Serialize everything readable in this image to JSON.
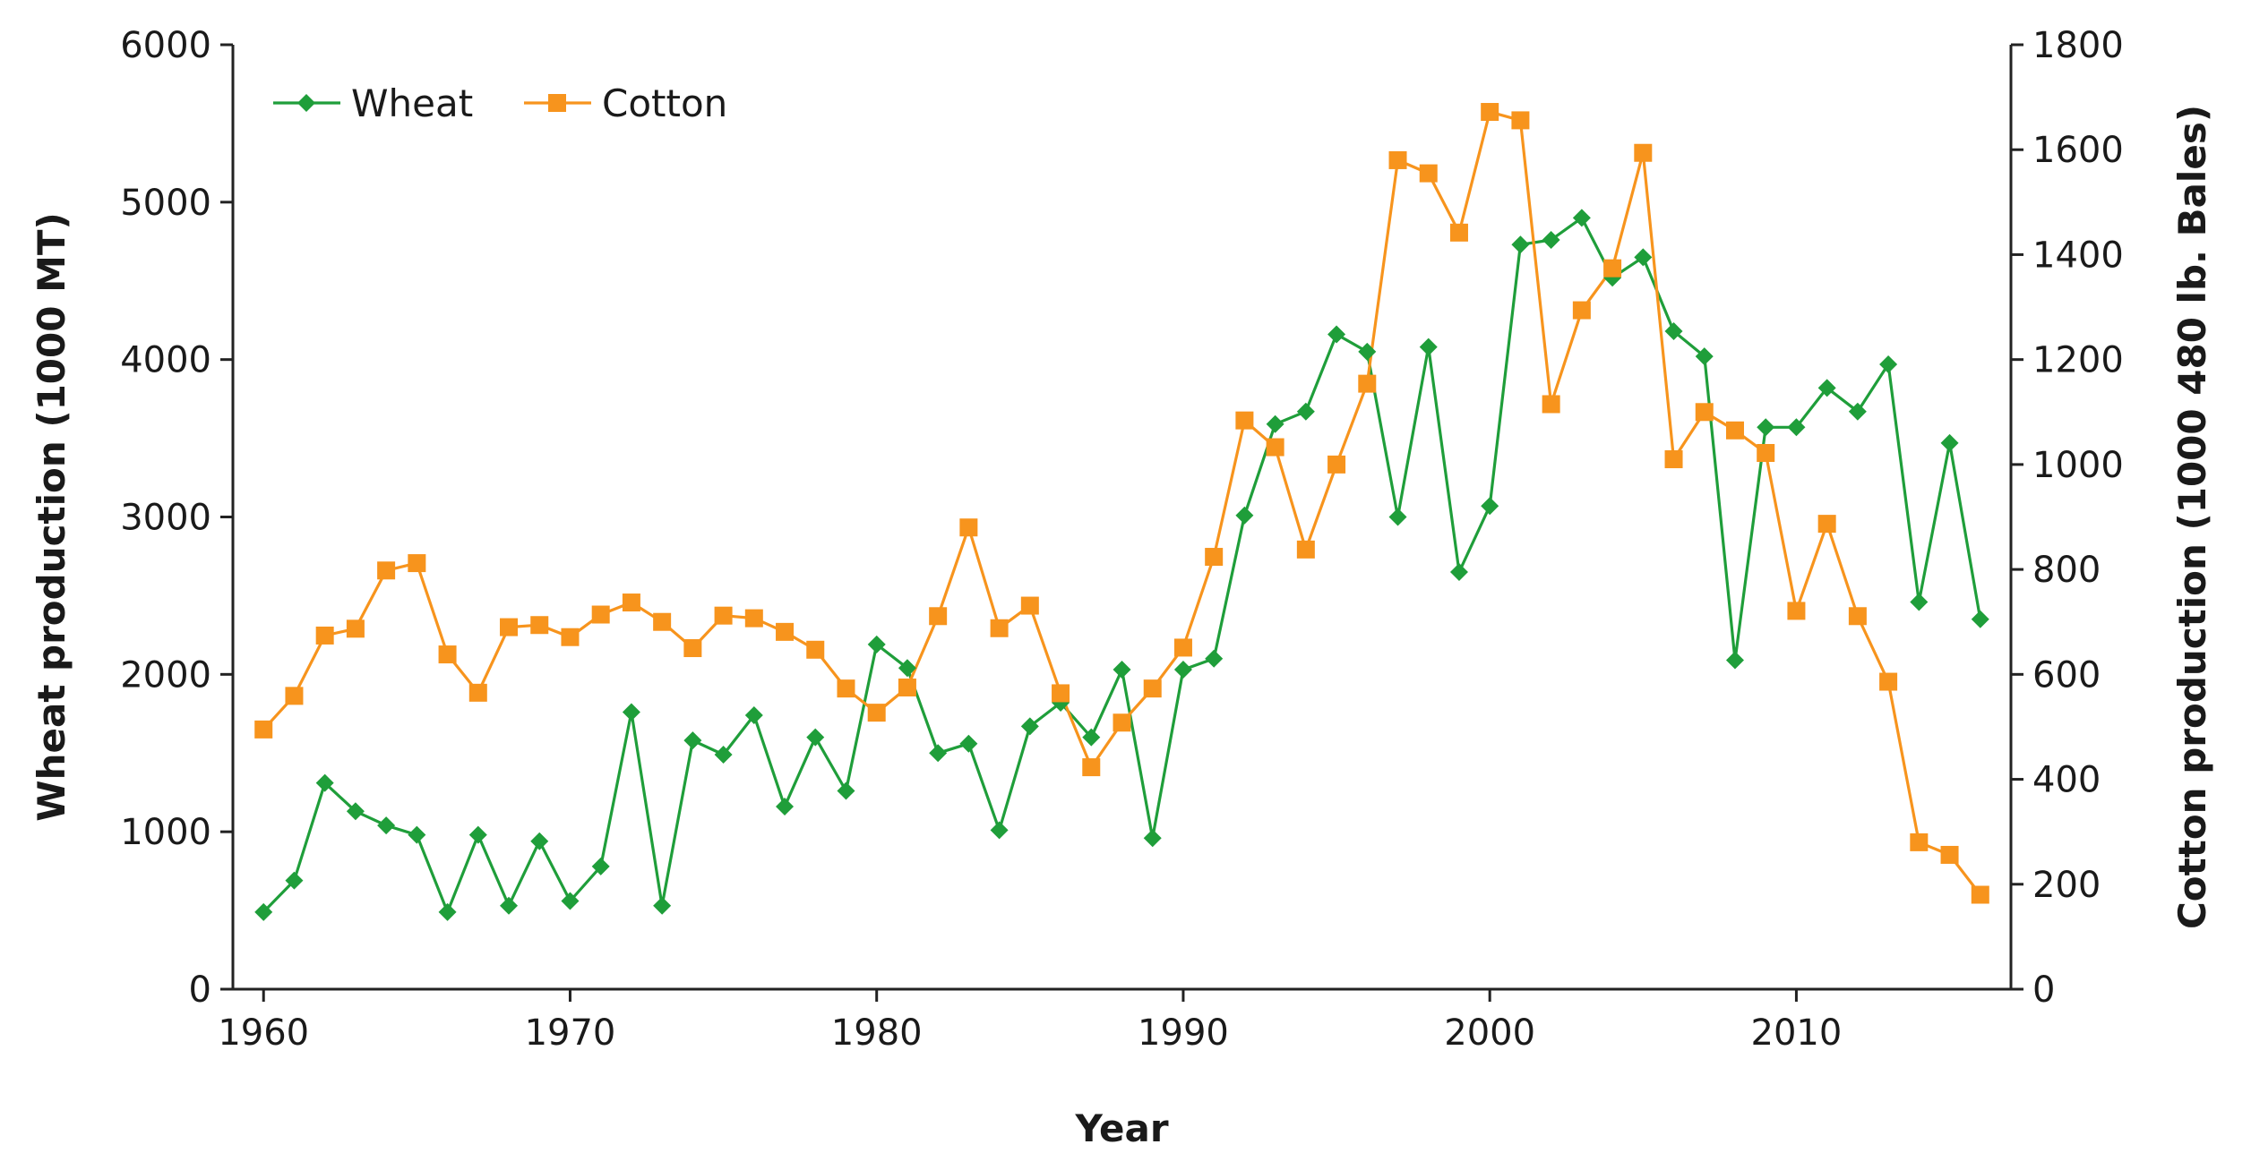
{
  "chart_data": {
    "type": "line",
    "title": "",
    "xlabel": "Year",
    "ylabel": "Wheat production (1000 MT)",
    "y2label": "Cotton production (1000 480 lb. Bales)",
    "xlim": [
      1959,
      2017
    ],
    "ylim": [
      0,
      6000
    ],
    "y2lim": [
      0,
      1800
    ],
    "xticks": [
      1960,
      1970,
      1980,
      1990,
      2000,
      2010
    ],
    "yticks": [
      0,
      1000,
      2000,
      3000,
      4000,
      5000,
      6000
    ],
    "y2ticks": [
      0,
      200,
      400,
      600,
      800,
      1000,
      1200,
      1400,
      1600,
      1800
    ],
    "grid": false,
    "legend_position": "top-left",
    "x": [
      1960,
      1961,
      1962,
      1963,
      1964,
      1965,
      1966,
      1967,
      1968,
      1969,
      1970,
      1971,
      1972,
      1973,
      1974,
      1975,
      1976,
      1977,
      1978,
      1979,
      1980,
      1981,
      1982,
      1983,
      1984,
      1985,
      1986,
      1987,
      1988,
      1989,
      1990,
      1991,
      1992,
      1993,
      1994,
      1995,
      1996,
      1997,
      1998,
      1999,
      2000,
      2001,
      2002,
      2003,
      2004,
      2005,
      2006,
      2007,
      2008,
      2009,
      2010,
      2011,
      2012,
      2013,
      2014,
      2015,
      2016
    ],
    "series": [
      {
        "name": "Wheat",
        "axis": "left",
        "color": "#1f9e3a",
        "marker": "diamond",
        "values": [
          490,
          690,
          1310,
          1130,
          1040,
          980,
          490,
          980,
          530,
          940,
          560,
          780,
          1760,
          530,
          1580,
          1490,
          1740,
          1160,
          1600,
          1260,
          2190,
          2040,
          1500,
          1560,
          1010,
          1670,
          1820,
          1600,
          2030,
          960,
          2030,
          2100,
          3010,
          3590,
          3670,
          4160,
          4050,
          3000,
          4080,
          2650,
          3070,
          4730,
          4760,
          4900,
          4520,
          4650,
          4180,
          4020,
          2090,
          3570,
          3570,
          3820,
          3670,
          3970,
          2460,
          3470,
          2350
        ]
      },
      {
        "name": "Cotton",
        "axis": "right",
        "color": "#f7941d",
        "marker": "square",
        "values": [
          495,
          559,
          674,
          687,
          798,
          812,
          638,
          565,
          690,
          694,
          671,
          714,
          737,
          700,
          650,
          712,
          707,
          681,
          647,
          573,
          527,
          575,
          711,
          880,
          688,
          731,
          564,
          423,
          508,
          573,
          651,
          824,
          1084,
          1033,
          838,
          1000,
          1154,
          1580,
          1555,
          1442,
          1672,
          1656,
          1115,
          1294,
          1374,
          1594,
          1010,
          1100,
          1065,
          1022,
          721,
          887,
          711,
          586,
          280,
          256,
          180
        ]
      }
    ]
  }
}
